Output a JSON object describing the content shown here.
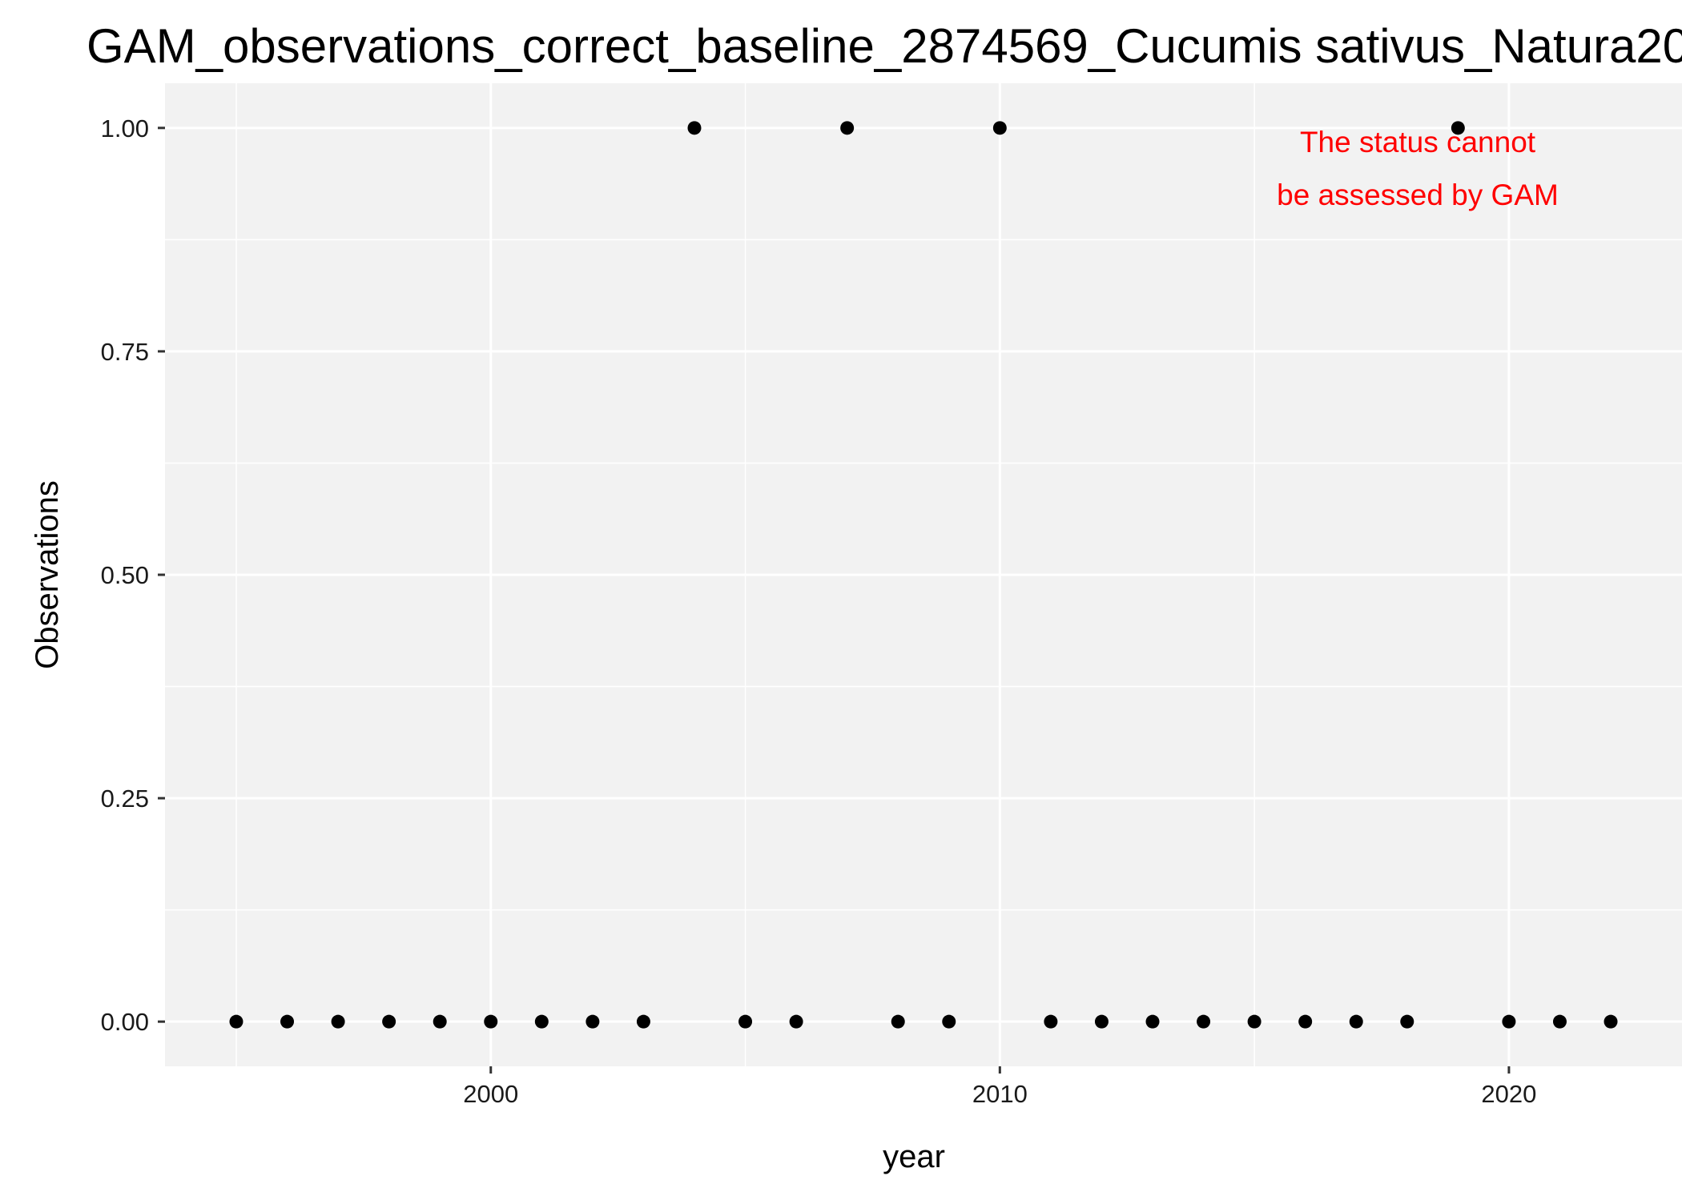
{
  "chart_data": {
    "type": "scatter",
    "title": "GAM_observations_correct_baseline_2874569_Cucumis sativus_Natura20",
    "xlabel": "year",
    "ylabel": "Observations",
    "xlim": [
      1993.6,
      2023.4
    ],
    "ylim": [
      -0.05,
      1.05
    ],
    "x_ticks": [
      2000,
      2010,
      2020
    ],
    "x_tick_labels": [
      "2000",
      "2010",
      "2020"
    ],
    "y_ticks": [
      0,
      0.25,
      0.5,
      0.75,
      1
    ],
    "y_tick_labels": [
      "0.00",
      "0.25",
      "0.50",
      "0.75",
      "1.00"
    ],
    "grid": true,
    "series": [
      {
        "name": "Observations",
        "x": [
          1995,
          1996,
          1997,
          1998,
          1999,
          2000,
          2001,
          2002,
          2003,
          2004,
          2005,
          2006,
          2007,
          2008,
          2009,
          2010,
          2011,
          2012,
          2013,
          2014,
          2015,
          2016,
          2017,
          2018,
          2019,
          2020,
          2021,
          2022
        ],
        "y": [
          0,
          0,
          0,
          0,
          0,
          0,
          0,
          0,
          0,
          1,
          0,
          0,
          1,
          0,
          0,
          1,
          0,
          0,
          0,
          0,
          0,
          0,
          0,
          0,
          1,
          0,
          0,
          0
        ]
      }
    ],
    "annotation": {
      "lines": [
        "The status cannot",
        "be assessed by GAM"
      ],
      "position": "top-right",
      "color": "#ff0000"
    },
    "colors": {
      "panel_background": "#f2f2f2",
      "grid": "#ffffff",
      "point": "#000000",
      "axis_tick": "#333333"
    }
  }
}
